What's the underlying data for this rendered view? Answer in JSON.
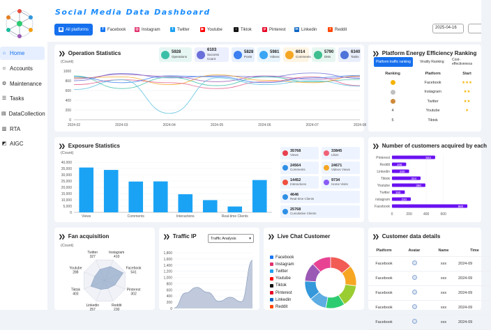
{
  "app": {
    "title": "Social Media Data Dashboard"
  },
  "sidebar": {
    "items": [
      {
        "label": "Home",
        "icon": "home-icon",
        "active": true
      },
      {
        "label": "Accounts",
        "icon": "user-icon"
      },
      {
        "label": "Maintenance",
        "icon": "wrench-icon"
      },
      {
        "label": "Tasks",
        "icon": "tasks-icon"
      },
      {
        "label": "DataCollection",
        "icon": "database-icon"
      },
      {
        "label": "RTA",
        "icon": "chart-icon"
      },
      {
        "label": "AIGC",
        "icon": "ai-icon"
      }
    ]
  },
  "header": {
    "tabs": [
      {
        "label": "All platforms",
        "color": "#1670ee",
        "active": true
      },
      {
        "label": "Facebook",
        "color": "#1877f2"
      },
      {
        "label": "Instagram",
        "color": "#e1306c"
      },
      {
        "label": "Twitter",
        "color": "#1da1f2"
      },
      {
        "label": "Youtube",
        "color": "#ff0000"
      },
      {
        "label": "Tiktok",
        "color": "#111111"
      },
      {
        "label": "Pinterest",
        "color": "#e60023"
      },
      {
        "label": "Linkedin",
        "color": "#0a66c2"
      },
      {
        "label": "Reddit",
        "color": "#ff4500"
      }
    ],
    "date_start": "2025-04-16"
  },
  "operation": {
    "title": "Operation Statistics",
    "unit": "(Count)",
    "stats": [
      {
        "value": "5928",
        "label": "Operations",
        "bg": "#e6f6f3",
        "color": "#3cbfa8"
      },
      {
        "value": "6103",
        "label": "Success Count",
        "bg": "#eceffd",
        "color": "#6b6fd9"
      },
      {
        "value": "5828",
        "label": "Posts",
        "bg": "#e6f0fe",
        "color": "#3b7ff0"
      },
      {
        "value": "5981",
        "label": "Videos",
        "bg": "#e9f5fe",
        "color": "#3aa4f5"
      },
      {
        "value": "6014",
        "label": "Comments",
        "bg": "#fef4e4",
        "color": "#f5a623"
      },
      {
        "value": "5790",
        "label": "DMs",
        "bg": "#e7f6f0",
        "color": "#3fbf8f"
      },
      {
        "value": "6340",
        "label": "Tasks",
        "bg": "#e8eefb",
        "color": "#4e74d9"
      }
    ]
  },
  "ranking": {
    "title": "Platform Energy Efficiency Ranking",
    "tabs": [
      "Platform traffic ranking",
      "Virality Ranking",
      "Cost-effectiveness"
    ],
    "headers": [
      "Ranking",
      "Platform",
      "Start"
    ],
    "rows": [
      {
        "rank": "1",
        "platform": "Facebook",
        "stars": "★★★",
        "medal": "#f5b301"
      },
      {
        "rank": "2",
        "platform": "Instagram",
        "stars": "★★",
        "medal": "#c0c0c0"
      },
      {
        "rank": "3",
        "platform": "Twitter",
        "stars": "★★",
        "medal": "#cd8a3a"
      },
      {
        "rank": "4",
        "platform": "Youtube",
        "stars": "★",
        "medal": ""
      },
      {
        "rank": "5",
        "platform": "Tiktok",
        "stars": "",
        "medal": ""
      }
    ]
  },
  "exposure": {
    "title": "Exposure Statistics",
    "unit": "(Count)",
    "stats": [
      {
        "value": "35768",
        "label": "Views",
        "color": "#e8404f"
      },
      {
        "value": "33845",
        "label": "Likes",
        "color": "#f06277"
      },
      {
        "value": "24564",
        "label": "Comments",
        "color": "#2f8fe5"
      },
      {
        "value": "24671",
        "label": "Videos Views",
        "color": "#f5a623"
      },
      {
        "value": "14452",
        "label": "Interactions",
        "color": "#f04f3f"
      },
      {
        "value": "9734",
        "label": "Home Visits",
        "color": "#8a5cf6"
      },
      {
        "value": "4646",
        "label": "Real-time Clients",
        "color": "#2f8fe5"
      },
      {
        "value": "25768",
        "label": "Cumulative Clients",
        "color": "#2f8fe5"
      }
    ]
  },
  "customers": {
    "title": "Number of customers acquired by each"
  },
  "fan": {
    "title": "Fan acquisition",
    "unit": "(Count)"
  },
  "traffic": {
    "title": "Traffic IP",
    "select": "Traffic Analysis"
  },
  "livechat": {
    "title": "Live Chat Customer",
    "items": [
      {
        "label": "Facebook",
        "color": "#1877f2"
      },
      {
        "label": "Instagram",
        "color": "#e1306c"
      },
      {
        "label": "Twitter",
        "color": "#1da1f2"
      },
      {
        "label": "Youtube",
        "color": "#ff0000"
      },
      {
        "label": "Tiktok",
        "color": "#111111"
      },
      {
        "label": "Pinterest",
        "color": "#e60023"
      },
      {
        "label": "Linkedin",
        "color": "#0a66c2"
      },
      {
        "label": "Reddit",
        "color": "#ff4500"
      }
    ]
  },
  "details": {
    "title": "Customer data details",
    "headers": [
      "Platform",
      "Avatar",
      "Name",
      "Time"
    ],
    "rows": [
      {
        "platform": "Facebook",
        "name": "xxx",
        "time": "2024-09"
      },
      {
        "platform": "Facebook",
        "name": "xxx",
        "time": "2024-09"
      },
      {
        "platform": "Facebook",
        "name": "xxx",
        "time": "2024-09"
      },
      {
        "platform": "Facebook",
        "name": "xxx",
        "time": "2024-09"
      },
      {
        "platform": "Facebook",
        "name": "xxx",
        "time": "2024-09"
      }
    ]
  },
  "chart_data": [
    {
      "type": "line",
      "title": "Operation Statistics",
      "ylabel": "(Count)",
      "x": [
        "2024-02",
        "2024-03",
        "2024-04",
        "2024-05",
        "2024-06",
        "2024-07",
        "2024-08"
      ],
      "ylim": [
        0,
        1000
      ],
      "yticks": [
        0,
        200,
        400,
        600,
        800,
        1000
      ],
      "series": [
        {
          "color": "#6a6fd4",
          "values": [
            800,
            950,
            860,
            900,
            880,
            960,
            850
          ]
        },
        {
          "color": "#3cbfa8",
          "values": [
            900,
            640,
            870,
            700,
            880,
            780,
            830
          ]
        },
        {
          "color": "#f5a623",
          "values": [
            860,
            880,
            720,
            920,
            810,
            760,
            900
          ]
        },
        {
          "color": "#e25b8a",
          "values": [
            720,
            820,
            760,
            640,
            780,
            880,
            700
          ]
        },
        {
          "color": "#3b7ff0",
          "values": [
            880,
            760,
            900,
            880,
            760,
            860,
            910
          ]
        },
        {
          "color": "#9b59b6",
          "values": [
            840,
            930,
            890,
            780,
            900,
            830,
            880
          ]
        },
        {
          "color": "#5bc0de",
          "values": [
            620,
            820,
            130,
            860,
            720,
            800,
            690
          ]
        }
      ]
    },
    {
      "type": "bar",
      "title": "Exposure Statistics",
      "ylabel": "(Count)",
      "categories": [
        "Views",
        "Likes",
        "Comments",
        "Videos Views",
        "Interactions",
        "Home Visits",
        "Real-time Clients",
        "Cumulative Clients"
      ],
      "tick_labels": [
        "Views",
        "",
        "Comments",
        "",
        "Interactions",
        "",
        "Real-time Clients",
        ""
      ],
      "values": [
        35768,
        33845,
        24564,
        24671,
        14452,
        9734,
        4646,
        25768
      ],
      "ylim": [
        0,
        40000
      ],
      "yticks": [
        0,
        5000,
        10000,
        15000,
        20000,
        25000,
        30000,
        35000,
        40000
      ],
      "color": "#1aa3f5"
    },
    {
      "type": "bar",
      "orientation": "horizontal",
      "title": "Number of customers acquired by each",
      "categories": [
        "Pinterest",
        "Reddit",
        "Linkedin",
        "Tiktok",
        "Youtube",
        "Twitter",
        "Instagram",
        "Facebook"
      ],
      "tick_labels": [
        "Pinterest",
        "Reddit",
        "Linkedin",
        "Tiktok",
        "Youtube",
        "Twitter",
        "nstagram",
        "Facebook"
      ],
      "values": [
        504,
        166,
        200,
        334,
        390,
        150,
        220,
        880
      ],
      "xlim": [
        0,
        800
      ],
      "xticks": [
        0,
        200,
        400,
        600
      ],
      "color": "#6a11f0"
    },
    {
      "type": "radar",
      "title": "Fan acquisition",
      "categories": [
        "Instagram",
        "Facebook",
        "Pinterest",
        "Reddit",
        "Linkedin",
        "Tiktok",
        "Youtube",
        "Twitter"
      ],
      "values": [
        410,
        541,
        302,
        230,
        257,
        403,
        288,
        327
      ]
    },
    {
      "type": "area",
      "title": "Traffic IP",
      "ylim": [
        0,
        1800
      ],
      "yticks": [
        0,
        200,
        400,
        600,
        800,
        1000,
        1200,
        1400,
        1600,
        1800
      ],
      "values": [
        20,
        500,
        680,
        520,
        230,
        360,
        220,
        1560
      ]
    },
    {
      "type": "pie",
      "title": "Live Chat Customer",
      "slices": [
        {
          "label": "Facebook",
          "value": 14,
          "color": "#f25c54"
        },
        {
          "label": "Instagram",
          "value": 13,
          "color": "#f6a623"
        },
        {
          "label": "Twitter",
          "value": 14,
          "color": "#9acd32"
        },
        {
          "label": "Youtube",
          "value": 12,
          "color": "#2ecc71"
        },
        {
          "label": "Tiktok",
          "value": 11,
          "color": "#5dade2"
        },
        {
          "label": "Pinterest",
          "value": 12,
          "color": "#3498db"
        },
        {
          "label": "Linkedin",
          "value": 12,
          "color": "#9b59b6"
        },
        {
          "label": "Reddit",
          "value": 12,
          "color": "#e84393"
        }
      ]
    }
  ]
}
